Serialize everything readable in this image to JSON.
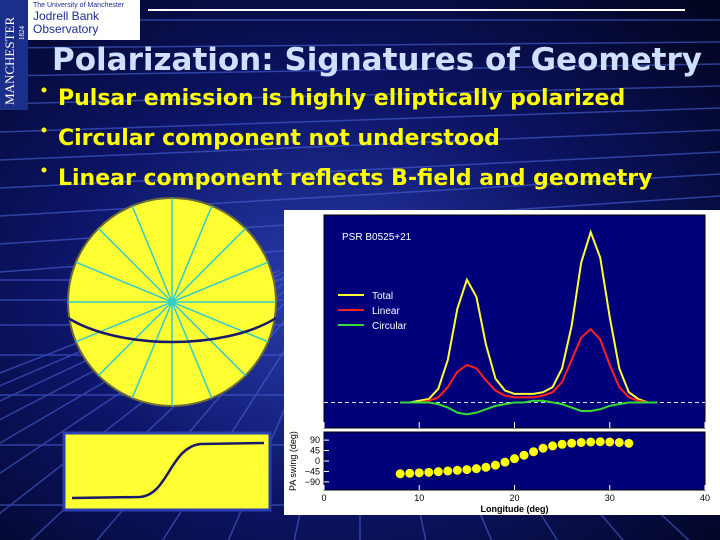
{
  "logo": {
    "university": "The University of Manchester",
    "name_line1": "Jodrell Bank",
    "name_line2": "Observatory",
    "vertical": "MANCHESTER",
    "year": "1824"
  },
  "title": "Polarization: Signatures of Geometry",
  "bullets": [
    "Pulsar emission is highly elliptically polarized",
    "Circular component not understood",
    "Linear component reflects B-field and geometry"
  ],
  "chart_data": [
    {
      "type": "line",
      "title": "PSR B0525+21",
      "x": [
        8,
        9,
        10,
        11,
        12,
        13,
        14,
        15,
        16,
        17,
        18,
        19,
        20,
        21,
        22,
        23,
        24,
        25,
        26,
        27,
        28,
        29,
        30,
        31,
        32,
        33,
        34,
        35
      ],
      "series": [
        {
          "name": "Total",
          "color": "#ffff33",
          "values": [
            0,
            0,
            0.01,
            0.02,
            0.08,
            0.25,
            0.55,
            0.72,
            0.62,
            0.34,
            0.14,
            0.07,
            0.05,
            0.05,
            0.05,
            0.06,
            0.09,
            0.2,
            0.45,
            0.82,
            1.0,
            0.85,
            0.5,
            0.2,
            0.06,
            0.02,
            0,
            0
          ]
        },
        {
          "name": "Linear",
          "color": "#ff2020",
          "values": [
            0,
            0,
            0,
            0.01,
            0.03,
            0.09,
            0.18,
            0.22,
            0.2,
            0.13,
            0.07,
            0.04,
            0.03,
            0.03,
            0.03,
            0.04,
            0.06,
            0.12,
            0.25,
            0.38,
            0.43,
            0.37,
            0.22,
            0.09,
            0.03,
            0.01,
            0,
            0
          ]
        },
        {
          "name": "Circular",
          "color": "#33dd33",
          "values": [
            0,
            0,
            0,
            0,
            -0.01,
            -0.03,
            -0.06,
            -0.07,
            -0.06,
            -0.04,
            -0.02,
            -0.01,
            0,
            0,
            0.01,
            0.01,
            0,
            -0.01,
            -0.03,
            -0.05,
            -0.05,
            -0.04,
            -0.02,
            -0.01,
            0,
            0,
            0,
            0
          ]
        }
      ],
      "xlim": [
        0,
        40
      ],
      "ylim": [
        -0.15,
        1.1
      ],
      "legend": "upper left"
    },
    {
      "type": "scatter",
      "ylabel": "PA swing (deg)",
      "xlabel": "Longitude (deg)",
      "color": "#ffff00",
      "x": [
        8,
        9,
        10,
        11,
        12,
        13,
        14,
        15,
        16,
        17,
        18,
        19,
        20,
        21,
        22,
        23,
        24,
        25,
        26,
        27,
        28,
        29,
        30,
        31,
        32
      ],
      "values": [
        -55,
        -53,
        -51,
        -49,
        -46,
        -43,
        -40,
        -37,
        -33,
        -27,
        -18,
        -5,
        10,
        25,
        40,
        55,
        65,
        72,
        77,
        80,
        82,
        83,
        82,
        80,
        76
      ],
      "xlim": [
        0,
        40
      ],
      "xticks": [
        0,
        10,
        20,
        30,
        40
      ],
      "ylim": [
        -125,
        125
      ],
      "yticks": [
        90,
        45,
        0,
        {
          "value": -45,
          "label": "−45"
        },
        {
          "value": -90,
          "label": "−90"
        }
      ]
    }
  ]
}
